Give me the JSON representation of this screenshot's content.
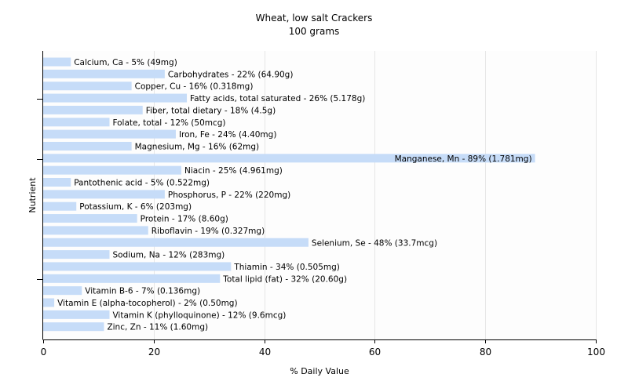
{
  "chart_data": {
    "type": "bar",
    "orientation": "horizontal",
    "title": "Wheat, low salt Crackers",
    "subtitle": "100 grams",
    "xlabel": "% Daily Value",
    "ylabel": "Nutrient",
    "xlim": [
      0,
      100
    ],
    "xticks": [
      0,
      20,
      40,
      60,
      80,
      100
    ],
    "grid": true,
    "legend": "none",
    "bar_color": "#c6dcf8",
    "categories": [
      "Calcium, Ca",
      "Carbohydrates",
      "Copper, Cu",
      "Fatty acids, total saturated",
      "Fiber, total dietary",
      "Folate, total",
      "Iron, Fe",
      "Magnesium, Mg",
      "Manganese, Mn",
      "Niacin",
      "Pantothenic acid",
      "Phosphorus, P",
      "Potassium, K",
      "Protein",
      "Riboflavin",
      "Selenium, Se",
      "Sodium, Na",
      "Thiamin",
      "Total lipid (fat)",
      "Vitamin B-6",
      "Vitamin E (alpha-tocopherol)",
      "Vitamin K (phylloquinone)",
      "Zinc, Zn"
    ],
    "values": [
      5,
      22,
      16,
      26,
      18,
      12,
      24,
      16,
      89,
      25,
      5,
      22,
      6,
      17,
      19,
      48,
      12,
      34,
      32,
      7,
      2,
      12,
      11
    ],
    "labels": [
      "Calcium, Ca - 5% (49mg)",
      "Carbohydrates - 22% (64.90g)",
      "Copper, Cu - 16% (0.318mg)",
      "Fatty acids, total saturated - 26% (5.178g)",
      "Fiber, total dietary - 18% (4.5g)",
      "Folate, total - 12% (50mcg)",
      "Iron, Fe - 24% (4.40mg)",
      "Magnesium, Mg - 16% (62mg)",
      "Manganese, Mn - 89% (1.781mg)",
      "Niacin - 25% (4.961mg)",
      "Pantothenic acid - 5% (0.522mg)",
      "Phosphorus, P - 22% (220mg)",
      "Potassium, K - 6% (203mg)",
      "Protein - 17% (8.60g)",
      "Riboflavin - 19% (0.327mg)",
      "Selenium, Se - 48% (33.7mcg)",
      "Sodium, Na - 12% (283mg)",
      "Thiamin - 34% (0.505mg)",
      "Total lipid (fat) - 32% (20.60g)",
      "Vitamin B-6 - 7% (0.136mg)",
      "Vitamin E (alpha-tocopherol) - 2% (0.50mg)",
      "Vitamin K (phylloquinone) - 12% (9.6mcg)",
      "Zinc, Zn - 11% (1.60mg)"
    ]
  }
}
